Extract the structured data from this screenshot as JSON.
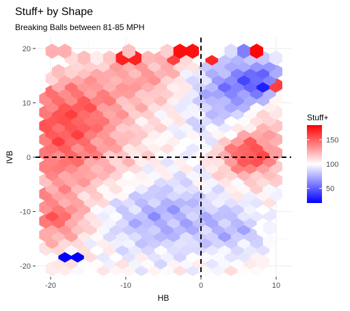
{
  "chart_data": {
    "type": "heatmap",
    "title": "Stuff+ by Shape",
    "subtitle": "Breaking Balls between 81-85 MPH",
    "xlabel": "HB",
    "ylabel": "IVB",
    "xlim": [
      -22,
      12
    ],
    "ylim": [
      -22,
      22
    ],
    "x_ticks": [
      -20,
      -10,
      0,
      10
    ],
    "y_ticks": [
      -20,
      -10,
      0,
      10,
      20
    ],
    "x_tick_labels": [
      "-20",
      "-10",
      "0",
      "10"
    ],
    "y_tick_labels": [
      "-20",
      "-10",
      "0",
      "10",
      "20"
    ],
    "reference_lines": {
      "x": 0,
      "y": 0,
      "style": "dashed"
    },
    "grid": true,
    "panel_background": "#ebebeb",
    "legend": {
      "title": "Stuff+",
      "placement": "right",
      "ticks": [
        150,
        100,
        50
      ],
      "tick_labels": [
        "150",
        "100",
        "50"
      ],
      "range": [
        20,
        180
      ],
      "colors": {
        "low": "#0000ff",
        "mid": "#ffffff",
        "high": "#ff0000"
      }
    },
    "highlight_cells": [
      {
        "hb": -19,
        "ivb": 19.5,
        "stuff": 125
      },
      {
        "hb": -9.7,
        "ivb": 18.3,
        "stuff": 170
      },
      {
        "hb": -4,
        "ivb": 18.3,
        "stuff": 160
      },
      {
        "hb": -2,
        "ivb": 19.5,
        "stuff": 175
      },
      {
        "hb": 1.5,
        "ivb": 18.3,
        "stuff": 168
      },
      {
        "hb": 5.5,
        "ivb": 19.5,
        "stuff": 60
      },
      {
        "hb": 7.5,
        "ivb": 19.5,
        "stuff": 178
      },
      {
        "hb": 8,
        "ivb": 12.7,
        "stuff": 30
      },
      {
        "hb": 9.7,
        "ivb": 12.7,
        "stuff": 160
      },
      {
        "hb": -17,
        "ivb": -18,
        "stuff": 20
      },
      {
        "hb": -20,
        "ivb": -11,
        "stuff": 155
      },
      {
        "hb": 6.5,
        "ivb": 1,
        "stuff": 150
      }
    ]
  }
}
